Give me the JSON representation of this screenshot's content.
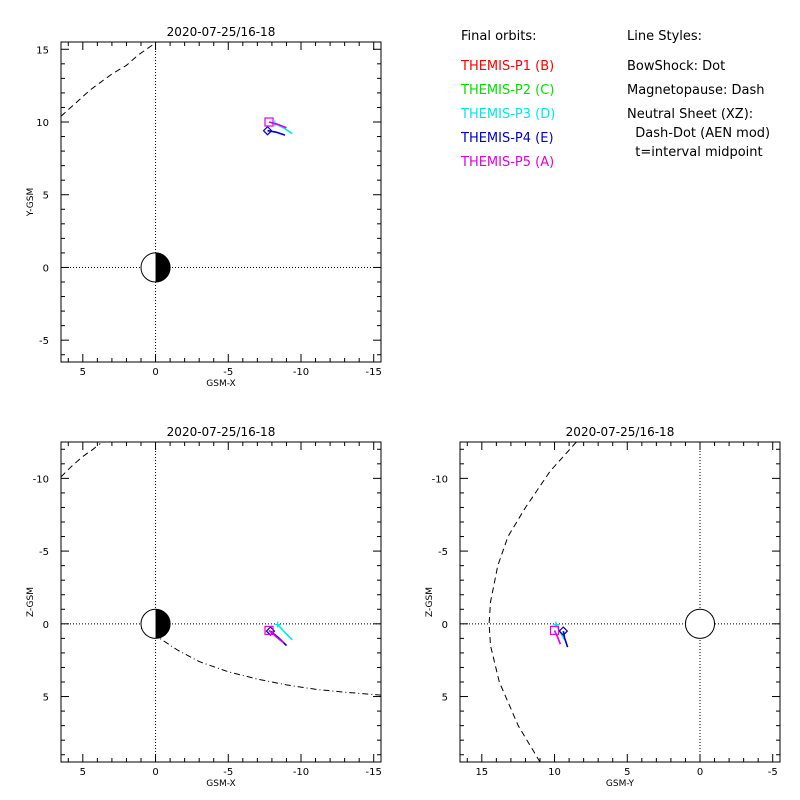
{
  "legend": {
    "orbits_header": "Final orbits:",
    "orbits": [
      {
        "label": "THEMIS-P1 (B)",
        "color": "#ff0000"
      },
      {
        "label": "THEMIS-P2 (C)",
        "color": "#00e000"
      },
      {
        "label": "THEMIS-P3 (D)",
        "color": "#00e8e8"
      },
      {
        "label": "THEMIS-P4 (E)",
        "color": "#0000c8"
      },
      {
        "label": "THEMIS-P5 (A)",
        "color": "#e000e0"
      }
    ],
    "styles_header": "Line Styles:",
    "styles": [
      "BowShock: Dot",
      "Magnetopause: Dash",
      "Neutral Sheet (XZ):",
      "  Dash-Dot (AEN mod)",
      "  t=interval midpoint"
    ]
  },
  "chart_data": [
    {
      "type": "line",
      "title": "2020-07-25/16-18",
      "xlabel": "GSM-X",
      "ylabel": "Y-GSM",
      "xlim": [
        6.5,
        -15.5
      ],
      "ylim": [
        15.5,
        -6.5
      ],
      "xticks": [
        5,
        0,
        -5,
        -10,
        -15
      ],
      "yticks": [
        -5,
        0,
        5,
        10,
        15
      ],
      "earth": {
        "x": 0,
        "y": 0,
        "r": 1,
        "shading": "half"
      },
      "boundaries": [
        {
          "name": "Magnetopause",
          "style": "dash",
          "points": [
            [
              6.5,
              10.4
            ],
            [
              5.6,
              11.2
            ],
            [
              4.5,
              12.2
            ],
            [
              3.0,
              13.3
            ],
            [
              2.0,
              13.9
            ],
            [
              1.2,
              14.6
            ],
            [
              0.2,
              15.3
            ],
            [
              -0.3,
              15.7
            ]
          ]
        }
      ],
      "series": [
        {
          "name": "THEMIS-P1 (B)",
          "color": "#ff0000",
          "points": []
        },
        {
          "name": "THEMIS-P2 (C)",
          "color": "#00e000",
          "points": []
        },
        {
          "name": "THEMIS-P3 (D)",
          "color": "#00e8e8",
          "points": [
            [
              -8.2,
              9.9
            ],
            [
              -8.8,
              9.6
            ],
            [
              -9.4,
              9.2
            ]
          ],
          "marker": "plus"
        },
        {
          "name": "THEMIS-P4 (E)",
          "color": "#0000c8",
          "points": [
            [
              -7.7,
              9.4
            ],
            [
              -8.3,
              9.3
            ],
            [
              -8.9,
              9.1
            ]
          ],
          "marker": "diamond"
        },
        {
          "name": "THEMIS-P5 (A)",
          "color": "#e000e0",
          "points": [
            [
              -7.8,
              10.0
            ],
            [
              -8.5,
              9.8
            ],
            [
              -9.0,
              9.6
            ]
          ],
          "marker": "square"
        }
      ]
    },
    {
      "type": "line",
      "title": "2020-07-25/16-18",
      "xlabel": "GSM-X",
      "ylabel": "Z-GSM",
      "xlim": [
        6.5,
        -15.5
      ],
      "ylim": [
        -12.5,
        9.5
      ],
      "xticks": [
        5,
        0,
        -5,
        -10,
        -15
      ],
      "yticks": [
        -10,
        -5,
        0,
        5
      ],
      "earth": {
        "x": 0,
        "y": 0,
        "r": 1,
        "shading": "half"
      },
      "boundaries": [
        {
          "name": "Magnetopause",
          "style": "dash",
          "points": [
            [
              6.5,
              -10.1
            ],
            [
              5.8,
              -10.8
            ],
            [
              5.0,
              -11.5
            ],
            [
              4.3,
              -12.0
            ],
            [
              3.8,
              -12.4
            ]
          ]
        },
        {
          "name": "Neutral Sheet",
          "style": "dashdot",
          "points": [
            [
              1.0,
              0.3
            ],
            [
              0,
              0.8
            ],
            [
              -1.5,
              1.8
            ],
            [
              -3.0,
              2.6
            ],
            [
              -5.0,
              3.3
            ],
            [
              -7.0,
              3.8
            ],
            [
              -9.0,
              4.2
            ],
            [
              -11.0,
              4.5
            ],
            [
              -13.0,
              4.7
            ],
            [
              -15.5,
              4.9
            ]
          ]
        }
      ],
      "series": [
        {
          "name": "THEMIS-P1 (B)",
          "color": "#ff0000",
          "points": []
        },
        {
          "name": "THEMIS-P2 (C)",
          "color": "#00e000",
          "points": []
        },
        {
          "name": "THEMIS-P3 (D)",
          "color": "#00e8e8",
          "points": [
            [
              -8.4,
              0.05
            ],
            [
              -8.9,
              0.6
            ],
            [
              -9.4,
              1.1
            ]
          ],
          "marker": "plus"
        },
        {
          "name": "THEMIS-P4 (E)",
          "color": "#0000c8",
          "points": [
            [
              -7.9,
              0.5
            ],
            [
              -8.5,
              1.0
            ],
            [
              -9.0,
              1.5
            ]
          ],
          "marker": "diamond"
        },
        {
          "name": "THEMIS-P5 (A)",
          "color": "#e000e0",
          "points": [
            [
              -7.8,
              0.45
            ],
            [
              -8.3,
              0.9
            ],
            [
              -8.8,
              1.3
            ]
          ],
          "marker": "square"
        }
      ]
    },
    {
      "type": "line",
      "title": "2020-07-25/16-18",
      "xlabel": "GSM-Y",
      "ylabel": "Z-GSM",
      "xlim": [
        16.5,
        -5.5
      ],
      "ylim": [
        -12.5,
        9.5
      ],
      "xticks": [
        15,
        10,
        5,
        0,
        -5
      ],
      "yticks": [
        -10,
        -5,
        0,
        5
      ],
      "earth": {
        "x": 0,
        "y": 0,
        "r": 1,
        "shading": "none"
      },
      "boundaries": [
        {
          "name": "Magnetopause",
          "style": "dash",
          "points": [
            [
              11.0,
              9.5
            ],
            [
              12.5,
              7.0
            ],
            [
              13.8,
              4.0
            ],
            [
              14.4,
              1.5
            ],
            [
              14.5,
              0
            ],
            [
              14.4,
              -1.5
            ],
            [
              13.9,
              -4.0
            ],
            [
              13.2,
              -6.0
            ],
            [
              12.0,
              -8.0
            ],
            [
              10.3,
              -10.5
            ],
            [
              8.5,
              -12.5
            ]
          ]
        }
      ],
      "series": [
        {
          "name": "THEMIS-P1 (B)",
          "color": "#ff0000",
          "points": []
        },
        {
          "name": "THEMIS-P2 (C)",
          "color": "#00e000",
          "points": []
        },
        {
          "name": "THEMIS-P3 (D)",
          "color": "#00e8e8",
          "points": [
            [
              9.9,
              0.05
            ],
            [
              9.6,
              0.6
            ],
            [
              9.3,
              1.1
            ]
          ],
          "marker": "plus"
        },
        {
          "name": "THEMIS-P4 (E)",
          "color": "#0000c8",
          "points": [
            [
              9.4,
              0.5
            ],
            [
              9.3,
              1.0
            ],
            [
              9.1,
              1.6
            ]
          ],
          "marker": "diamond"
        },
        {
          "name": "THEMIS-P5 (A)",
          "color": "#e000e0",
          "points": [
            [
              10.0,
              0.45
            ],
            [
              9.8,
              0.9
            ],
            [
              9.6,
              1.4
            ]
          ],
          "marker": "square"
        }
      ]
    }
  ]
}
